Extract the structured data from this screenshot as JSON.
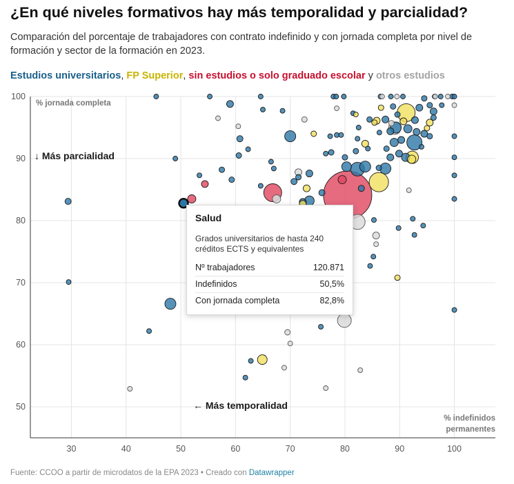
{
  "title": "¿En qué niveles formativos hay más temporalidad y parcialidad?",
  "subtitle": "Comparación del porcentaje de trabajadores con contrato indefinido y con jornada completa por nivel de formación y sector de la formación en 2023.",
  "legend": {
    "universitarios": "Estudios universitarios",
    "sep1": ",",
    "fp_superior": "FP Superior",
    "sep2": ",",
    "sin_estudios": "sin estudios o solo graduado escolar",
    "sep3": "y",
    "otros": "otros estudios"
  },
  "annotations": {
    "mas_parcialidad": "↓ Más parcialidad",
    "mas_temporalidad": "← Más temporalidad",
    "y_title": "% jornada completa",
    "x_title_line1": "% indefinidos",
    "x_title_line2": "permanentes"
  },
  "tooltip": {
    "title": "Salud",
    "description": "Grados universitarios de hasta 240 créditos ECTS y equivalentes",
    "rows": [
      {
        "label": "Nº trabajadores",
        "value": "120.871"
      },
      {
        "label": "Indefinidos",
        "value": "50,5%"
      },
      {
        "label": "Con jornada completa",
        "value": "82,8%"
      }
    ]
  },
  "footer": {
    "source": "Fuente: CCOO a partir de microdatos de la EPA 2023 • Creado con ",
    "tool": "Datawrapper"
  },
  "colors": {
    "universitarios": "#2d77a8",
    "fp_superior": "#f1e05e",
    "sin_estudios": "#e0465f",
    "otros": "#dcdcdc",
    "legend_universitarios": "#1a5f8a",
    "legend_fp": "#c9b400",
    "legend_sin": "#c8102e",
    "legend_otros": "#a3a3a3"
  },
  "chart_data": {
    "type": "scatter",
    "title": "% jornada completa vs % indefinidos permanentes",
    "xlabel": "% indefinidos permanentes",
    "ylabel": "% jornada completa",
    "xlim": [
      22.5,
      107.5
    ],
    "ylim": [
      45,
      100
    ],
    "xticks": [
      30,
      40,
      50,
      60,
      70,
      80,
      90,
      100
    ],
    "yticks": [
      50,
      60,
      70,
      80,
      90,
      100
    ],
    "size_variable": "Nº trabajadores",
    "highlighted": {
      "name": "Salud",
      "x": 50.5,
      "y": 82.8,
      "workers": 120871
    },
    "series": [
      {
        "name": "Estudios universitarios",
        "key": "universitarios",
        "points": [
          {
            "x": 29.4,
            "y": 83.1,
            "r": 4.5
          },
          {
            "x": 29.5,
            "y": 70.1,
            "r": 3.5
          },
          {
            "x": 44.2,
            "y": 62.2,
            "r": 3.5
          },
          {
            "x": 48.1,
            "y": 66.6,
            "r": 8
          },
          {
            "x": 49.0,
            "y": 90.0,
            "r": 3.5
          },
          {
            "x": 45.5,
            "y": 100.0,
            "r": 3.5
          },
          {
            "x": 55.3,
            "y": 100.0,
            "r": 3.5
          },
          {
            "x": 59.0,
            "y": 98.8,
            "r": 5
          },
          {
            "x": 53.4,
            "y": 87.3,
            "r": 3.5
          },
          {
            "x": 57.5,
            "y": 88.2,
            "r": 4
          },
          {
            "x": 59.3,
            "y": 86.6,
            "r": 4
          },
          {
            "x": 60.6,
            "y": 90.5,
            "r": 4
          },
          {
            "x": 60.8,
            "y": 93.2,
            "r": 4.5
          },
          {
            "x": 62.3,
            "y": 91.5,
            "r": 3.5
          },
          {
            "x": 64.6,
            "y": 100.0,
            "r": 3.5
          },
          {
            "x": 65.0,
            "y": 97.9,
            "r": 3.5
          },
          {
            "x": 64.6,
            "y": 85.6,
            "r": 3.5
          },
          {
            "x": 66.5,
            "y": 89.5,
            "r": 3.5
          },
          {
            "x": 67.0,
            "y": 88.4,
            "r": 3.5
          },
          {
            "x": 68.6,
            "y": 97.7,
            "r": 3.5
          },
          {
            "x": 70.0,
            "y": 93.6,
            "r": 8
          },
          {
            "x": 70.7,
            "y": 86.3,
            "r": 4.5
          },
          {
            "x": 71.5,
            "y": 87.0,
            "r": 4
          },
          {
            "x": 72.3,
            "y": 83.0,
            "r": 5
          },
          {
            "x": 73.5,
            "y": 87.6,
            "r": 5
          },
          {
            "x": 73.5,
            "y": 83.2,
            "r": 7
          },
          {
            "x": 75.8,
            "y": 84.5,
            "r": 4.5
          },
          {
            "x": 75.6,
            "y": 62.9,
            "r": 3.5
          },
          {
            "x": 76.5,
            "y": 90.8,
            "r": 3.5
          },
          {
            "x": 77.3,
            "y": 93.6,
            "r": 3.5
          },
          {
            "x": 77.5,
            "y": 91.0,
            "r": 4
          },
          {
            "x": 77.9,
            "y": 100.0,
            "r": 3.5
          },
          {
            "x": 78.4,
            "y": 100.0,
            "r": 3.5
          },
          {
            "x": 78.5,
            "y": 93.8,
            "r": 3.5
          },
          {
            "x": 79.3,
            "y": 93.8,
            "r": 3.5
          },
          {
            "x": 79.8,
            "y": 100.0,
            "r": 3.5
          },
          {
            "x": 80.0,
            "y": 90.2,
            "r": 4
          },
          {
            "x": 80.3,
            "y": 88.7,
            "r": 7
          },
          {
            "x": 81.5,
            "y": 97.3,
            "r": 3.5
          },
          {
            "x": 82.0,
            "y": 91.2,
            "r": 4
          },
          {
            "x": 82.3,
            "y": 93.2,
            "r": 3.5
          },
          {
            "x": 82.5,
            "y": 95.0,
            "r": 3.5
          },
          {
            "x": 82.3,
            "y": 88.3,
            "r": 10
          },
          {
            "x": 83.0,
            "y": 85.2,
            "r": 4.5
          },
          {
            "x": 83.7,
            "y": 88.7,
            "r": 8
          },
          {
            "x": 84.2,
            "y": 91.6,
            "r": 3.5
          },
          {
            "x": 84.5,
            "y": 96.3,
            "r": 4
          },
          {
            "x": 84.6,
            "y": 72.7,
            "r": 3.5
          },
          {
            "x": 85.2,
            "y": 74.2,
            "r": 3.5
          },
          {
            "x": 85.3,
            "y": 80.1,
            "r": 3.5
          },
          {
            "x": 86.2,
            "y": 88.5,
            "r": 4
          },
          {
            "x": 86.3,
            "y": 94.2,
            "r": 3.5
          },
          {
            "x": 86.5,
            "y": 100.0,
            "r": 3.5
          },
          {
            "x": 87.4,
            "y": 88.4,
            "r": 8
          },
          {
            "x": 87.4,
            "y": 96.3,
            "r": 5
          },
          {
            "x": 87.6,
            "y": 91.6,
            "r": 4
          },
          {
            "x": 88.3,
            "y": 90.2,
            "r": 5
          },
          {
            "x": 88.3,
            "y": 94.4,
            "r": 5
          },
          {
            "x": 88.4,
            "y": 100.0,
            "r": 3.5
          },
          {
            "x": 88.8,
            "y": 98.4,
            "r": 4
          },
          {
            "x": 89.0,
            "y": 92.6,
            "r": 6
          },
          {
            "x": 89.3,
            "y": 95.0,
            "r": 8
          },
          {
            "x": 89.6,
            "y": 97.1,
            "r": 4
          },
          {
            "x": 89.9,
            "y": 90.8,
            "r": 5
          },
          {
            "x": 89.8,
            "y": 78.8,
            "r": 3.5
          },
          {
            "x": 90.3,
            "y": 93.0,
            "r": 5
          },
          {
            "x": 90.6,
            "y": 100.0,
            "r": 3.5
          },
          {
            "x": 91.1,
            "y": 90.2,
            "r": 6
          },
          {
            "x": 91.5,
            "y": 94.8,
            "r": 6
          },
          {
            "x": 92.4,
            "y": 80.3,
            "r": 3.5
          },
          {
            "x": 92.7,
            "y": 77.7,
            "r": 3.5
          },
          {
            "x": 92.8,
            "y": 96.2,
            "r": 5
          },
          {
            "x": 93.1,
            "y": 94.3,
            "r": 5
          },
          {
            "x": 93.6,
            "y": 98.2,
            "r": 5
          },
          {
            "x": 94.0,
            "y": 91.9,
            "r": 3.5
          },
          {
            "x": 94.3,
            "y": 79.2,
            "r": 3.5
          },
          {
            "x": 94.5,
            "y": 94.0,
            "r": 5
          },
          {
            "x": 95.5,
            "y": 93.6,
            "r": 4
          },
          {
            "x": 96.2,
            "y": 96.6,
            "r": 4
          },
          {
            "x": 96.2,
            "y": 97.6,
            "r": 5
          },
          {
            "x": 96.4,
            "y": 100.0,
            "r": 3.5
          },
          {
            "x": 97.5,
            "y": 100.0,
            "r": 3.5
          },
          {
            "x": 97.7,
            "y": 98.6,
            "r": 3.5
          },
          {
            "x": 94.5,
            "y": 99.7,
            "r": 4
          },
          {
            "x": 92.7,
            "y": 92.6,
            "r": 11
          },
          {
            "x": 95.5,
            "y": 98.6,
            "r": 4
          },
          {
            "x": 99.6,
            "y": 100.0,
            "r": 3.5
          },
          {
            "x": 100.0,
            "y": 100.0,
            "r": 3.5
          },
          {
            "x": 100.0,
            "y": 93.6,
            "r": 3.5
          },
          {
            "x": 100.0,
            "y": 90.2,
            "r": 3.5
          },
          {
            "x": 100.0,
            "y": 87.3,
            "r": 3.5
          },
          {
            "x": 100.0,
            "y": 83.5,
            "r": 3.5
          },
          {
            "x": 100.0,
            "y": 65.6,
            "r": 3.5
          },
          {
            "x": 61.8,
            "y": 54.7,
            "r": 3.5
          },
          {
            "x": 62.8,
            "y": 57.4,
            "r": 3.5
          },
          {
            "x": 50.5,
            "y": 82.8,
            "r": 6
          }
        ]
      },
      {
        "name": "FP Superior",
        "key": "fp_superior",
        "points": [
          {
            "x": 64.9,
            "y": 57.6,
            "r": 7
          },
          {
            "x": 72.3,
            "y": 82.7,
            "r": 5
          },
          {
            "x": 73.0,
            "y": 85.2,
            "r": 5
          },
          {
            "x": 74.3,
            "y": 94.0,
            "r": 4
          },
          {
            "x": 82.0,
            "y": 97.1,
            "r": 3.5
          },
          {
            "x": 83.7,
            "y": 92.4,
            "r": 5
          },
          {
            "x": 85.4,
            "y": 95.8,
            "r": 4
          },
          {
            "x": 85.8,
            "y": 96.1,
            "r": 5
          },
          {
            "x": 86.2,
            "y": 86.2,
            "r": 14
          },
          {
            "x": 86.6,
            "y": 98.2,
            "r": 4
          },
          {
            "x": 89.6,
            "y": 70.8,
            "r": 4
          },
          {
            "x": 90.7,
            "y": 96.0,
            "r": 5
          },
          {
            "x": 91.2,
            "y": 97.4,
            "r": 13
          },
          {
            "x": 92.3,
            "y": 90.2,
            "r": 9
          },
          {
            "x": 95.0,
            "y": 94.9,
            "r": 4
          },
          {
            "x": 95.5,
            "y": 95.8,
            "r": 5
          },
          {
            "x": 92.2,
            "y": 89.9,
            "r": 6
          }
        ]
      },
      {
        "name": "sin estudios o solo graduado escolar",
        "key": "sin_estudios",
        "points": [
          {
            "x": 54.4,
            "y": 85.9,
            "r": 5
          },
          {
            "x": 52.0,
            "y": 83.5,
            "r": 6
          },
          {
            "x": 66.8,
            "y": 84.5,
            "r": 13
          },
          {
            "x": 79.5,
            "y": 86.6,
            "r": 6
          },
          {
            "x": 80.5,
            "y": 84.1,
            "r": 35
          }
        ]
      },
      {
        "name": "otros estudios",
        "key": "otros",
        "points": [
          {
            "x": 40.7,
            "y": 52.9,
            "r": 3.5
          },
          {
            "x": 56.8,
            "y": 96.5,
            "r": 3.5
          },
          {
            "x": 60.5,
            "y": 95.2,
            "r": 3.5
          },
          {
            "x": 68.9,
            "y": 56.3,
            "r": 3.5
          },
          {
            "x": 69.5,
            "y": 62.0,
            "r": 4
          },
          {
            "x": 70.0,
            "y": 60.2,
            "r": 3.5
          },
          {
            "x": 71.5,
            "y": 87.8,
            "r": 5
          },
          {
            "x": 72.6,
            "y": 96.3,
            "r": 4
          },
          {
            "x": 76.5,
            "y": 53.0,
            "r": 3.5
          },
          {
            "x": 78.5,
            "y": 98.1,
            "r": 3.5
          },
          {
            "x": 79.9,
            "y": 63.9,
            "r": 10
          },
          {
            "x": 82.3,
            "y": 79.8,
            "r": 11
          },
          {
            "x": 82.8,
            "y": 55.9,
            "r": 3.5
          },
          {
            "x": 85.7,
            "y": 77.6,
            "r": 5
          },
          {
            "x": 85.7,
            "y": 76.2,
            "r": 3.5
          },
          {
            "x": 88.5,
            "y": 95.7,
            "r": 4
          },
          {
            "x": 89.1,
            "y": 94.9,
            "r": 9
          },
          {
            "x": 91.7,
            "y": 84.9,
            "r": 3.5
          },
          {
            "x": 96.5,
            "y": 100.0,
            "r": 3.5
          },
          {
            "x": 98.8,
            "y": 100.0,
            "r": 3.5
          },
          {
            "x": 100.0,
            "y": 98.6,
            "r": 3.5
          },
          {
            "x": 86.8,
            "y": 100.0,
            "r": 3.5
          },
          {
            "x": 89.5,
            "y": 100.0,
            "r": 3.5
          },
          {
            "x": 67.5,
            "y": 83.5,
            "r": 6
          }
        ]
      }
    ]
  }
}
